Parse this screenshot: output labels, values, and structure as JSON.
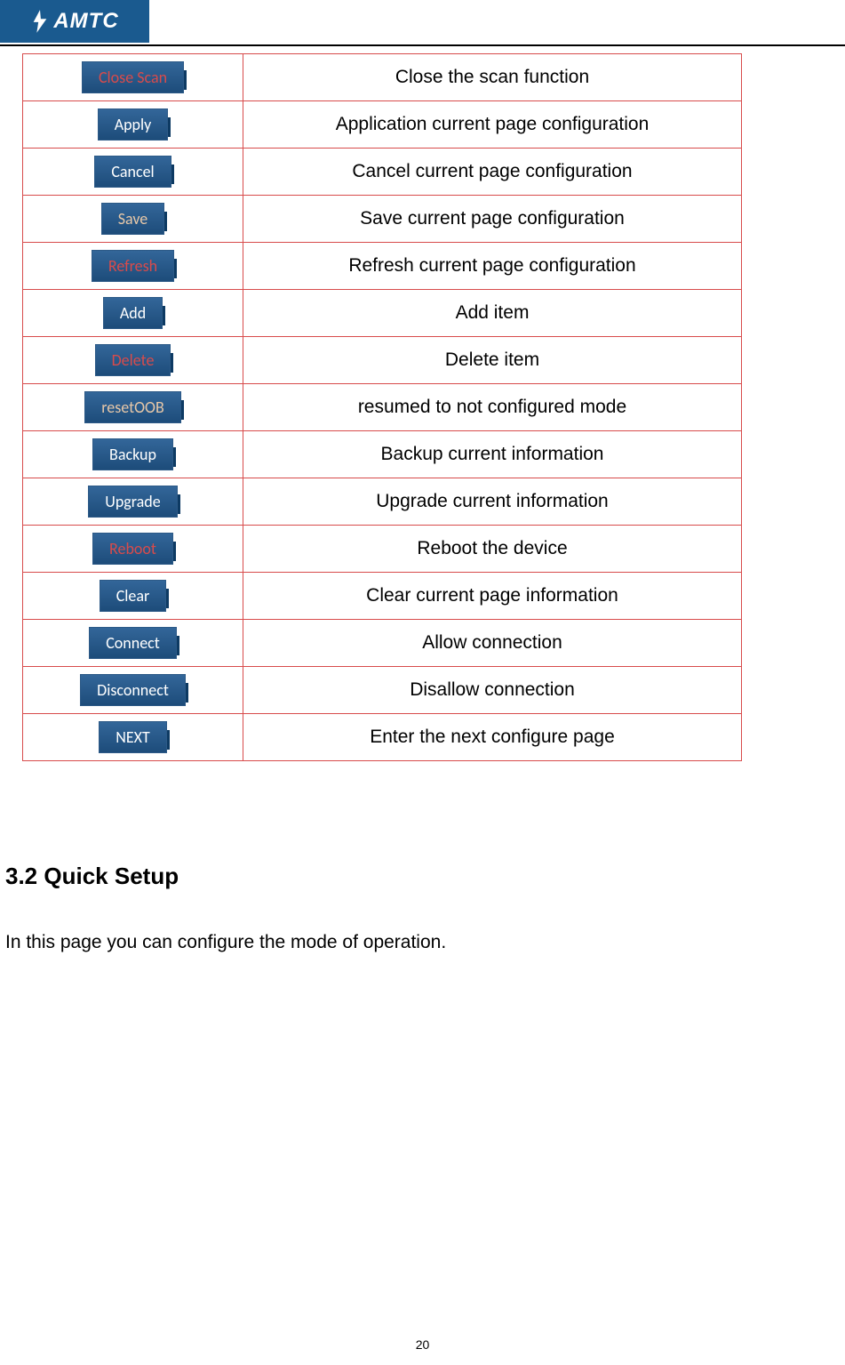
{
  "logo": {
    "brand": "AMTC",
    "background_color": "#1a5a8f",
    "text_color": "#ffffff"
  },
  "table": {
    "border_color": "#d84b4b",
    "button_bg_gradient_top": "#336699",
    "button_bg_gradient_bottom": "#1d4c7a",
    "button_shadow_color": "#0d3a63",
    "rows": [
      {
        "label": "Close Scan",
        "label_color": "#d84b4b",
        "description": "Close the scan function"
      },
      {
        "label": "Apply",
        "label_color": "#ffffff",
        "description": "Application current page configuration"
      },
      {
        "label": "Cancel",
        "label_color": "#ffffff",
        "description": "Cancel current page configuration"
      },
      {
        "label": "Save",
        "label_color": "#e8c8a8",
        "description": "Save current page configuration"
      },
      {
        "label": "Refresh",
        "label_color": "#d84b4b",
        "description": "Refresh current page configuration"
      },
      {
        "label": "Add",
        "label_color": "#ffffff",
        "description": "Add item"
      },
      {
        "label": "Delete",
        "label_color": "#d84b4b",
        "description": "Delete item"
      },
      {
        "label": "resetOOB",
        "label_color": "#e8c8a8",
        "description": "resumed to not configured mode"
      },
      {
        "label": "Backup",
        "label_color": "#ffffff",
        "description": "Backup current information"
      },
      {
        "label": "Upgrade",
        "label_color": "#ffffff",
        "description": "Upgrade current information"
      },
      {
        "label": "Reboot",
        "label_color": "#d84b4b",
        "description": "Reboot the device"
      },
      {
        "label": "Clear",
        "label_color": "#ffffff",
        "description": "Clear current page information"
      },
      {
        "label": "Connect",
        "label_color": "#ffffff",
        "description": "Allow connection"
      },
      {
        "label": "Disconnect",
        "label_color": "#ffffff",
        "description": "Disallow connection"
      },
      {
        "label": "NEXT",
        "label_color": "#ffffff",
        "description": "Enter the next configure page"
      }
    ]
  },
  "section": {
    "number": "3.2",
    "title": "Quick Setup",
    "body": "In this page you can configure the mode of operation."
  },
  "page_number": "20"
}
